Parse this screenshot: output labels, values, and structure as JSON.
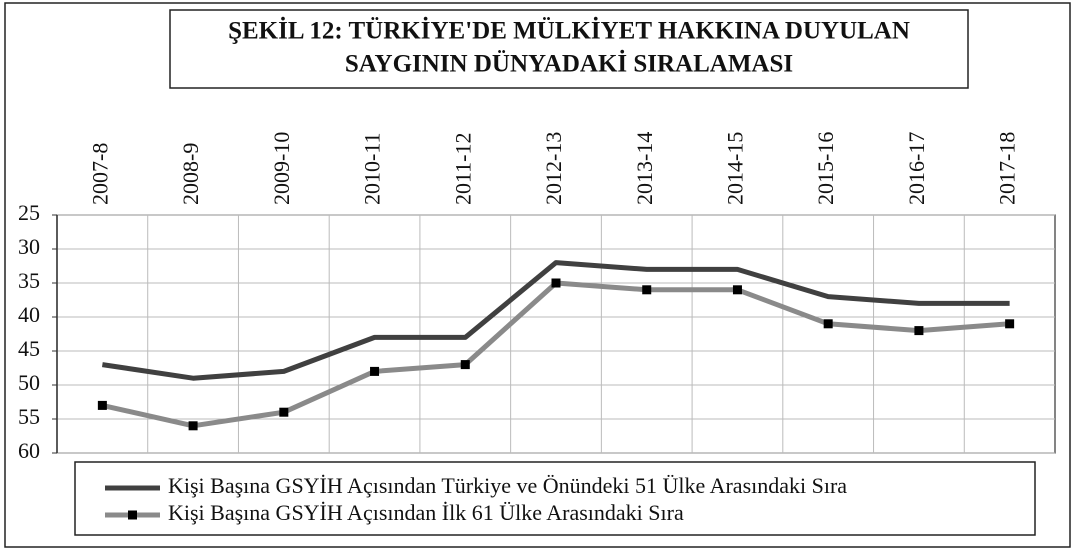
{
  "chart_data": {
    "type": "line",
    "title": [
      "ŞEKİL 12: TÜRKİYE'DE MÜLKİYET HAKKINA DUYULAN",
      "SAYGININ DÜNYADAKİ SIRALAMASI"
    ],
    "categories": [
      "2007-8",
      "2008-9",
      "2009-10",
      "2010-11",
      "2011-12",
      "2012-13",
      "2013-14",
      "2014-15",
      "2015-16",
      "2016-17",
      "2017-18"
    ],
    "series": [
      {
        "name": "Kişi Başına GSYİH Açısından Türkiye ve Önündeki 51 Ülke Arasındaki Sıra",
        "color": "#404040",
        "marker": "none",
        "values": [
          47,
          49,
          48,
          43,
          43,
          32,
          33,
          33,
          37,
          38,
          38
        ]
      },
      {
        "name": "Kişi Başına GSYİH Açısından İlk 61 Ülke Arasındaki Sıra",
        "color": "#8a8a8a",
        "marker": "square",
        "marker_color": "#000000",
        "values": [
          53,
          56,
          54,
          48,
          47,
          35,
          36,
          36,
          41,
          42,
          41
        ]
      }
    ],
    "ylim": [
      25,
      60
    ],
    "yticks": [
      25,
      30,
      35,
      40,
      45,
      50,
      55,
      60
    ],
    "y_inverted": true,
    "grid": true,
    "legend": "bottom"
  }
}
